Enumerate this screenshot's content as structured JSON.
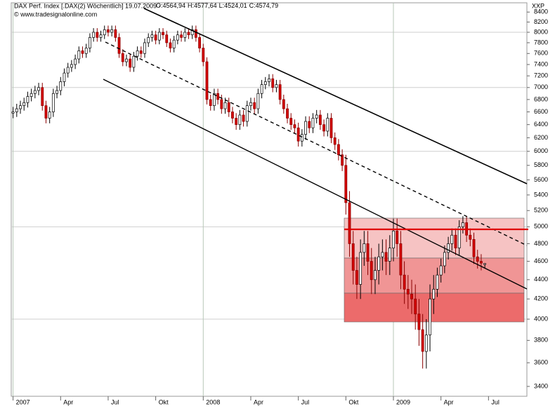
{
  "chart_data": {
    "type": "candlestick",
    "title": "DAX Perf. Index [.DAX(2) Wöchentlich] 19.07.2009 -",
    "ohlc_labels": [
      "O:4564,94",
      "H:4577,64",
      "L:4524,01",
      "C:4574,79"
    ],
    "source": "© www.tradesignalonline.com",
    "axis_label": "XXP",
    "log_scale": true,
    "up_color": "#ffffff",
    "down_color": "#d40000",
    "ylim": [
      3320,
      8590
    ],
    "yticks": [
      3400,
      3600,
      3800,
      4000,
      4200,
      4400,
      4600,
      4800,
      5000,
      5200,
      5400,
      5600,
      5800,
      6000,
      6200,
      6400,
      6600,
      6800,
      7000,
      7200,
      7400,
      7600,
      7800,
      8000,
      8200,
      8400
    ],
    "xlim": [
      -0.5,
      140.5
    ],
    "xticks": [
      {
        "value": 0,
        "label": "2007"
      },
      {
        "value": 13,
        "label": "Apr"
      },
      {
        "value": 26,
        "label": "Jul"
      },
      {
        "value": 39,
        "label": "Okt"
      },
      {
        "value": 52,
        "label": "2008"
      },
      {
        "value": 65,
        "label": "Apr"
      },
      {
        "value": 78,
        "label": "Jul"
      },
      {
        "value": 91,
        "label": "Okt"
      },
      {
        "value": 104,
        "label": "2009"
      },
      {
        "value": 117,
        "label": "Apr"
      },
      {
        "value": 130,
        "label": "Jul"
      }
    ],
    "open": [
      6580,
      6600,
      6650,
      6700,
      6750,
      6850,
      6900,
      6950,
      7000,
      6700,
      6500,
      6600,
      6900,
      6950,
      7100,
      7250,
      7350,
      7400,
      7500,
      7650,
      7600,
      7700,
      7900,
      8000,
      7900,
      7950,
      8050,
      8000,
      8050,
      7900,
      7600,
      7450,
      7500,
      7350,
      7550,
      7650,
      7600,
      7800,
      7900,
      7950,
      7850,
      8000,
      7950,
      7800,
      7700,
      7850,
      7950,
      7900,
      8000,
      7950,
      8050,
      7900,
      7700,
      7450,
      6800,
      6700,
      6900,
      6800,
      6650,
      6750,
      6600,
      6500,
      6400,
      6550,
      6450,
      6700,
      6750,
      6650,
      6900,
      7050,
      7100,
      7150,
      7000,
      7050,
      6800,
      6650,
      6500,
      6400,
      6350,
      6150,
      6250,
      6450,
      6350,
      6500,
      6550,
      6400,
      6300,
      6500,
      6200,
      6100,
      5950,
      5800,
      5300,
      4800,
      4500,
      4350,
      4700,
      4800,
      4600,
      4400,
      4500,
      4650,
      4700,
      4600,
      4750,
      4950,
      4800,
      4450,
      4300,
      4250,
      4200,
      4050,
      3900,
      3700,
      3850,
      4200,
      4300,
      4450,
      4550,
      4700,
      4800,
      4900,
      4750,
      5000,
      5050,
      4900,
      4850,
      4650,
      4600,
      4565
    ],
    "high": [
      6680,
      6730,
      6780,
      6830,
      6930,
      6980,
      7030,
      7080,
      7080,
      6780,
      6680,
      6980,
      7030,
      7180,
      7330,
      7430,
      7480,
      7580,
      7730,
      7730,
      7780,
      7980,
      8080,
      8080,
      8030,
      8130,
      8130,
      8130,
      8130,
      7980,
      7680,
      7580,
      7580,
      7630,
      7730,
      7730,
      7880,
      7980,
      8030,
      8030,
      8080,
      8080,
      8030,
      7880,
      7930,
      8030,
      8030,
      8080,
      8080,
      8130,
      8130,
      7980,
      7780,
      7530,
      6880,
      6980,
      6980,
      6880,
      6830,
      6830,
      6680,
      6580,
      6630,
      6630,
      6780,
      6830,
      6830,
      6980,
      7130,
      7180,
      7230,
      7230,
      7130,
      7130,
      6880,
      6730,
      6580,
      6480,
      6430,
      6330,
      6530,
      6530,
      6580,
      6630,
      6630,
      6480,
      6580,
      6580,
      6280,
      6180,
      6030,
      5950,
      5450,
      4950,
      4650,
      4850,
      4950,
      4950,
      4750,
      4650,
      4800,
      4850,
      4850,
      4900,
      5100,
      5100,
      4950,
      4600,
      4450,
      4400,
      4350,
      4200,
      4050,
      4000,
      4350,
      4450,
      4530,
      4630,
      4780,
      4880,
      4980,
      4980,
      5080,
      5130,
      5130,
      4980,
      4930,
      4730,
      4680,
      4578
    ],
    "low": [
      6500,
      6520,
      6570,
      6620,
      6670,
      6770,
      6820,
      6870,
      6620,
      6420,
      6420,
      6520,
      6820,
      6870,
      7020,
      7170,
      7270,
      7320,
      7420,
      7520,
      7520,
      7620,
      7820,
      7820,
      7820,
      7870,
      7920,
      7920,
      7820,
      7520,
      7370,
      7370,
      7270,
      7270,
      7470,
      7520,
      7520,
      7720,
      7820,
      7770,
      7770,
      7870,
      7720,
      7620,
      7620,
      7770,
      7820,
      7820,
      7870,
      7870,
      7820,
      7620,
      7370,
      6720,
      6620,
      6620,
      6720,
      6570,
      6570,
      6520,
      6420,
      6320,
      6320,
      6370,
      6370,
      6620,
      6570,
      6570,
      6820,
      6970,
      7020,
      6920,
      6920,
      6720,
      6570,
      6420,
      6320,
      6270,
      6070,
      6070,
      6170,
      6270,
      6270,
      6420,
      6320,
      6220,
      6220,
      6120,
      6020,
      5870,
      5720,
      5150,
      4650,
      4350,
      4200,
      4200,
      4550,
      4450,
      4250,
      4250,
      4350,
      4500,
      4450,
      4450,
      4600,
      4650,
      4300,
      4150,
      4100,
      4050,
      3900,
      3750,
      3550,
      3550,
      3700,
      4050,
      4220,
      4370,
      4470,
      4620,
      4720,
      4670,
      4670,
      4920,
      4820,
      4770,
      4570,
      4520,
      4500,
      4524
    ],
    "close": [
      6600,
      6650,
      6700,
      6750,
      6850,
      6900,
      6950,
      7000,
      6700,
      6500,
      6600,
      6900,
      6950,
      7100,
      7250,
      7350,
      7400,
      7500,
      7650,
      7600,
      7700,
      7900,
      8000,
      7900,
      7950,
      8050,
      8000,
      8050,
      7900,
      7600,
      7450,
      7500,
      7350,
      7550,
      7650,
      7600,
      7800,
      7900,
      7950,
      7850,
      8000,
      7950,
      7800,
      7700,
      7850,
      7950,
      7900,
      8000,
      7950,
      8050,
      7900,
      7700,
      7450,
      6800,
      6700,
      6900,
      6800,
      6650,
      6750,
      6600,
      6500,
      6400,
      6550,
      6450,
      6700,
      6750,
      6650,
      6900,
      7050,
      7100,
      7150,
      7000,
      7050,
      6800,
      6650,
      6500,
      6400,
      6350,
      6150,
      6250,
      6450,
      6350,
      6500,
      6550,
      6400,
      6300,
      6500,
      6200,
      6100,
      5950,
      5800,
      5300,
      4800,
      4500,
      4350,
      4700,
      4800,
      4600,
      4400,
      4500,
      4650,
      4700,
      4600,
      4750,
      4950,
      4800,
      4450,
      4300,
      4250,
      4200,
      4050,
      3900,
      3700,
      3850,
      4200,
      4300,
      4450,
      4550,
      4700,
      4800,
      4900,
      4750,
      5000,
      5050,
      4900,
      4850,
      4650,
      4600,
      4580,
      4575
    ]
  }
}
